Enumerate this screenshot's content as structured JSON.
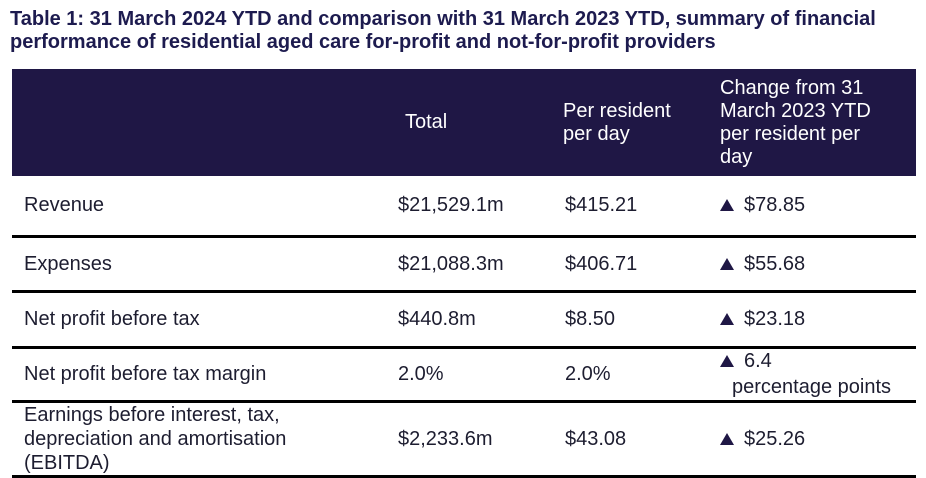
{
  "title": {
    "text": "Table 1: 31 March 2024 YTD and comparison with 31 March 2023 YTD, summary of financial performance of residential aged care for-profit and not-for-profit providers"
  },
  "colors": {
    "header_bg": "#1f1745",
    "header_text": "#ffffff",
    "title_text": "#1d1b4f",
    "body_text": "#1d1d30",
    "row_divider": "#000000",
    "change_triangle": "#1f1745"
  },
  "table": {
    "header": {
      "columns": [
        "",
        "Total",
        "Per resident per day",
        "Change from 31 March 2023 YTD per resident per day"
      ]
    },
    "rows": [
      {
        "label": "Revenue",
        "total": "$21,529.1m",
        "per_resident_per_day": "$415.21",
        "change": {
          "direction": "up",
          "icon": "up-triangle",
          "value": "$78.85"
        }
      },
      {
        "label": "Expenses",
        "total": "$21,088.3m",
        "per_resident_per_day": "$406.71",
        "change": {
          "direction": "up",
          "icon": "up-triangle",
          "value": "$55.68"
        }
      },
      {
        "label": "Net profit before tax",
        "total": "$440.8m",
        "per_resident_per_day": "$8.50",
        "change": {
          "direction": "up",
          "icon": "up-triangle",
          "value": "$23.18"
        }
      },
      {
        "label": "Net profit before tax margin",
        "total": "2.0%",
        "per_resident_per_day": "2.0%",
        "change": {
          "direction": "up",
          "icon": "up-triangle",
          "value": "6.4",
          "suffix": "percentage points"
        }
      },
      {
        "label": "Earnings before interest, tax, depreciation and amortisation (EBITDA)",
        "total": "$2,233.6m",
        "per_resident_per_day": "$43.08",
        "change": {
          "direction": "up",
          "icon": "up-triangle",
          "value": "$25.26"
        }
      }
    ]
  }
}
